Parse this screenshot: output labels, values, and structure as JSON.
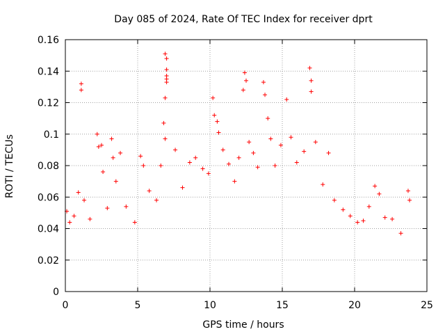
{
  "chart_data": {
    "type": "scatter",
    "title": "Day 085 of 2024, Rate Of TEC Index for receiver dprt",
    "xlabel": "GPS time / hours",
    "ylabel": "ROTI / TECUs",
    "xlim": [
      0,
      25
    ],
    "ylim": [
      0,
      0.16
    ],
    "x_ticks": [
      "0",
      "5",
      "10",
      "15",
      "20",
      "25"
    ],
    "y_ticks": [
      "0",
      "0.02",
      "0.04",
      "0.06",
      "0.08",
      "0.1",
      "0.12",
      "0.14",
      "0.16"
    ],
    "grid": true,
    "marker": "+",
    "series_color": "#ff0000",
    "series": [
      {
        "name": "",
        "points": [
          [
            0.1,
            0.051
          ],
          [
            0.3,
            0.044
          ],
          [
            0.6,
            0.048
          ],
          [
            0.9,
            0.063
          ],
          [
            1.1,
            0.132
          ],
          [
            1.1,
            0.128
          ],
          [
            1.3,
            0.058
          ],
          [
            1.7,
            0.046
          ],
          [
            2.2,
            0.1
          ],
          [
            2.3,
            0.092
          ],
          [
            2.5,
            0.093
          ],
          [
            2.6,
            0.076
          ],
          [
            2.9,
            0.053
          ],
          [
            3.2,
            0.097
          ],
          [
            3.3,
            0.085
          ],
          [
            3.5,
            0.07
          ],
          [
            3.8,
            0.088
          ],
          [
            4.2,
            0.054
          ],
          [
            4.8,
            0.044
          ],
          [
            5.2,
            0.086
          ],
          [
            5.4,
            0.08
          ],
          [
            5.8,
            0.064
          ],
          [
            6.3,
            0.058
          ],
          [
            6.6,
            0.08
          ],
          [
            6.8,
            0.107
          ],
          [
            6.9,
            0.151
          ],
          [
            7.0,
            0.148
          ],
          [
            7.0,
            0.141
          ],
          [
            7.0,
            0.137
          ],
          [
            7.0,
            0.135
          ],
          [
            7.0,
            0.133
          ],
          [
            6.9,
            0.123
          ],
          [
            6.9,
            0.097
          ],
          [
            7.6,
            0.09
          ],
          [
            8.1,
            0.066
          ],
          [
            8.6,
            0.082
          ],
          [
            9.0,
            0.085
          ],
          [
            9.5,
            0.078
          ],
          [
            9.9,
            0.075
          ],
          [
            10.2,
            0.123
          ],
          [
            10.3,
            0.112
          ],
          [
            10.5,
            0.108
          ],
          [
            10.6,
            0.101
          ],
          [
            10.9,
            0.09
          ],
          [
            11.3,
            0.081
          ],
          [
            11.7,
            0.07
          ],
          [
            12.0,
            0.085
          ],
          [
            12.3,
            0.128
          ],
          [
            12.4,
            0.139
          ],
          [
            12.5,
            0.134
          ],
          [
            12.7,
            0.095
          ],
          [
            13.0,
            0.088
          ],
          [
            13.3,
            0.079
          ],
          [
            13.7,
            0.133
          ],
          [
            13.8,
            0.125
          ],
          [
            14.0,
            0.11
          ],
          [
            14.2,
            0.097
          ],
          [
            14.5,
            0.08
          ],
          [
            14.9,
            0.093
          ],
          [
            15.3,
            0.122
          ],
          [
            15.6,
            0.098
          ],
          [
            16.0,
            0.082
          ],
          [
            16.5,
            0.089
          ],
          [
            16.9,
            0.142
          ],
          [
            17.0,
            0.134
          ],
          [
            17.0,
            0.127
          ],
          [
            17.3,
            0.095
          ],
          [
            17.8,
            0.068
          ],
          [
            18.2,
            0.088
          ],
          [
            18.6,
            0.058
          ],
          [
            19.2,
            0.052
          ],
          [
            19.7,
            0.048
          ],
          [
            20.2,
            0.044
          ],
          [
            20.6,
            0.045
          ],
          [
            21.0,
            0.054
          ],
          [
            21.4,
            0.067
          ],
          [
            21.7,
            0.062
          ],
          [
            22.1,
            0.047
          ],
          [
            22.6,
            0.046
          ],
          [
            23.2,
            0.037
          ],
          [
            23.7,
            0.064
          ],
          [
            23.8,
            0.058
          ]
        ]
      }
    ]
  }
}
